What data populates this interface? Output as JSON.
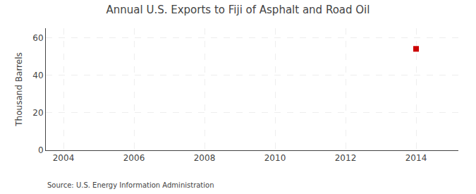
{
  "chart_data": {
    "type": "scatter",
    "title": "Annual U.S. Exports to Fiji of Asphalt and Road Oil",
    "ylabel": "Thousand Barrels",
    "annotations": [
      "Source: U.S. Energy Information Administration"
    ],
    "x": [
      2014
    ],
    "values": [
      54
    ],
    "color": "#cc0000",
    "marker": "square",
    "xlim": [
      2003.5,
      2015.2
    ],
    "xticks": [
      2004,
      2006,
      2008,
      2010,
      2012,
      2014
    ],
    "ylim": [
      0,
      65
    ],
    "yticks": [
      0,
      20,
      40,
      60
    ],
    "grid": true
  }
}
